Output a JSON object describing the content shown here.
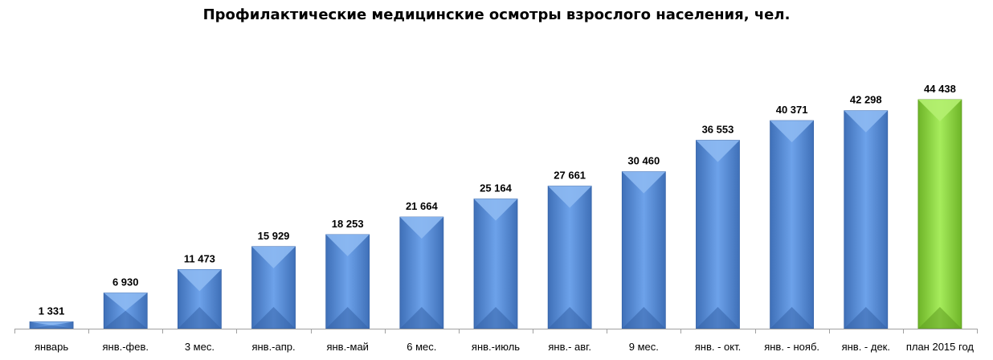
{
  "chart_data": {
    "type": "bar",
    "title": "Профилактические медицинские осмотры взрослого населения, чел.",
    "xlabel": "",
    "ylabel": "",
    "ylim": [
      0,
      48000
    ],
    "grid": false,
    "legend": "none",
    "categories": [
      "январь",
      "янв.-фев.",
      "3 мес.",
      "янв.-апр.",
      "янв.-май",
      "6 мес.",
      "янв.-июль",
      "янв.- авг.",
      "9 мес.",
      "янв. - окт.",
      "янв. - нояб.",
      "янв. - дек.",
      "план 2015 год"
    ],
    "values": [
      1331,
      6930,
      11473,
      15929,
      18253,
      21664,
      25164,
      27661,
      30460,
      36553,
      40371,
      42298,
      44438
    ],
    "value_labels": [
      "1 331",
      "6 930",
      "11 473",
      "15 929",
      "18 253",
      "21 664",
      "25 164",
      "27 661",
      "30 460",
      "36 553",
      "40 371",
      "42 298",
      "44 438"
    ],
    "colors": {
      "bar": "#5b8fd8",
      "plan_bar": "#8fd94a",
      "axis": "#a0a0a0"
    }
  }
}
